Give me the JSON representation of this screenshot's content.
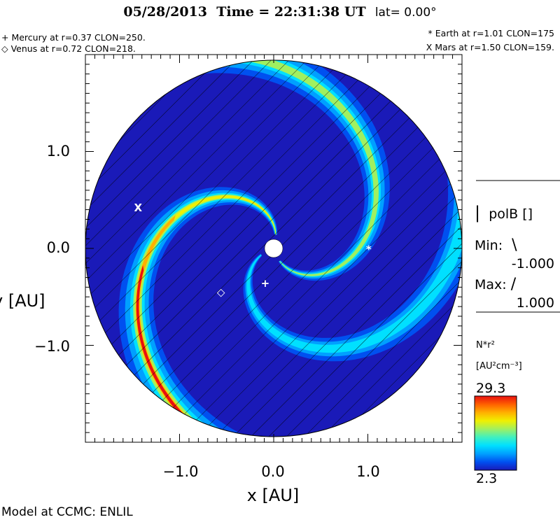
{
  "header": {
    "date": "05/28/2013",
    "time_text": "Time = 22:31:38 UT",
    "lat_text": "lat= 0.00°"
  },
  "planets": {
    "mercury": "+ Mercury at r=0.37 CLON=250.",
    "venus": "◇ Venus at r=0.72 CLON=218.",
    "earth": "* Earth at  r=1.01 CLON=175",
    "mars": "X Mars at r=1.50 CLON=159."
  },
  "side_panel": {
    "field_label": "polB []",
    "min_label": "Min:",
    "min_value": "-1.000",
    "max_label": "Max:",
    "max_value": "1.000",
    "colorbar_quantity": "N*r²",
    "colorbar_units": "[AU²cm⁻³]",
    "colorbar_max": "29.3",
    "colorbar_min": "2.3",
    "colorbar_colors": [
      "#1a1ab8",
      "#0050f0",
      "#00a0ff",
      "#00e0ff",
      "#40f0c0",
      "#a0f060",
      "#f0f000",
      "#ffb000",
      "#ff6000",
      "#e81010"
    ]
  },
  "footer": {
    "model_text": "Model at CCMC: ENLIL"
  },
  "chart_data": {
    "type": "heatmap",
    "projection": "polar-ecliptic",
    "title": "05/28/2013 Time = 22:31:38 UT lat= 0.00°",
    "xlabel": "x [AU]",
    "ylabel": "y [AU]",
    "xlim": [
      -2.0,
      2.0
    ],
    "ylim": [
      -2.0,
      2.0
    ],
    "x_ticks": [
      {
        "value": -1.0,
        "label": "−1.0"
      },
      {
        "value": 0.0,
        "label": "0.0"
      },
      {
        "value": 1.0,
        "label": "1.0"
      }
    ],
    "y_ticks": [
      {
        "value": 1.0,
        "label": "1.0"
      },
      {
        "value": 0.0,
        "label": "0.0"
      },
      {
        "value": -1.0,
        "label": "−1.0"
      }
    ],
    "quantity": "N*r²",
    "units": "AU²cm⁻³",
    "color_range": [
      2.3,
      29.3
    ],
    "overlay": "polB [] hatched",
    "planet_markers": [
      {
        "name": "Mercury",
        "symbol": "+",
        "x": -0.09,
        "y": -0.36
      },
      {
        "name": "Venus",
        "symbol": "◇",
        "x": -0.56,
        "y": -0.45
      },
      {
        "name": "Earth",
        "symbol": "*",
        "x": 1.01,
        "y": -0.01
      },
      {
        "name": "Mars",
        "symbol": "X",
        "x": -1.44,
        "y": 0.42
      }
    ]
  }
}
